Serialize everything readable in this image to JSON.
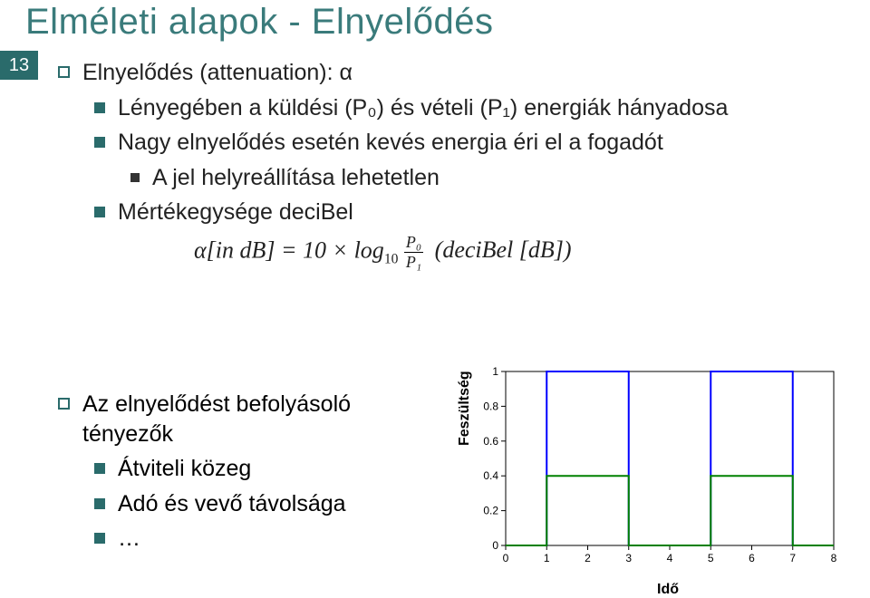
{
  "title": "Elméleti alapok - Elnyelődés",
  "page_number": "13",
  "bullets": {
    "b1_1": "Elnyelődés (attenuation): α",
    "b2_1": "Lényegében a küldési (P₀) és vételi (P₁) energiák hányadosa",
    "b2_2": "Nagy elnyelődés esetén kevés energia éri el a fogadót",
    "b3_1": "A jel helyreállítása lehetetlen",
    "b2_3": "Mértékegysége deciBel",
    "b1_2": "Az elnyelődést befolyásoló tényezők",
    "b2_4": "Átviteli közeg",
    "b2_5": "Adó és vevő távolsága",
    "b2_6": "…"
  },
  "formula": {
    "lhs": "α[in dB] = 10 × log",
    "sub10": "10",
    "frac_num": "P₀",
    "frac_den": "P₁",
    "tail": "(deciBel [dB])"
  },
  "chart": {
    "ylabel": "Feszültség",
    "xlabel": "Idő",
    "xlim": [
      0,
      8
    ],
    "ylim": [
      0,
      1
    ],
    "yticks": [
      0,
      0.2,
      0.4,
      0.6,
      0.8,
      1
    ],
    "xticks": [
      0,
      1,
      2,
      3,
      4,
      5,
      6,
      7,
      8
    ],
    "background": "#ffffff",
    "axis_color": "#000000",
    "series": [
      {
        "name": "blue",
        "color": "#0000ff",
        "linewidth": 2,
        "x": [
          0,
          1,
          1,
          3,
          3,
          5,
          5,
          7,
          7,
          8
        ],
        "y": [
          0,
          0,
          1,
          1,
          0,
          0,
          1,
          1,
          0,
          0
        ]
      },
      {
        "name": "green",
        "color": "#008000",
        "linewidth": 2,
        "x": [
          0,
          1,
          1,
          3,
          3,
          5,
          5,
          7,
          7,
          8
        ],
        "y": [
          0,
          0,
          0.4,
          0.4,
          0,
          0,
          0.4,
          0.4,
          0,
          0
        ]
      }
    ]
  }
}
